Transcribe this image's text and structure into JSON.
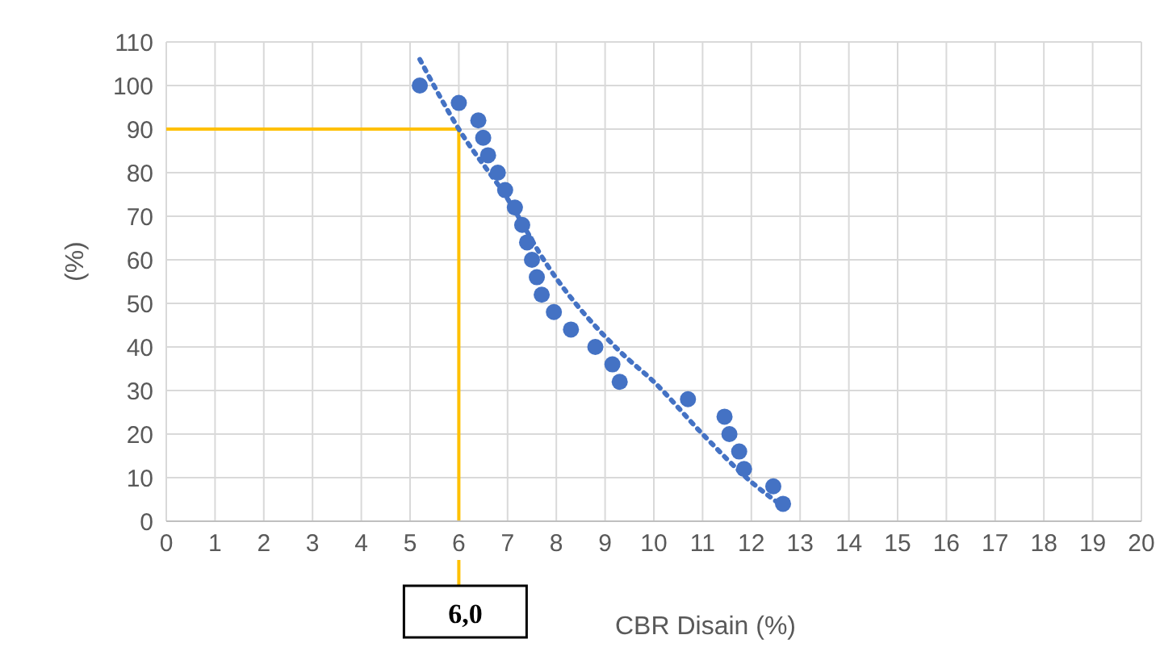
{
  "chart_data": {
    "type": "scatter",
    "xlabel": "CBR Disain (%)",
    "ylabel": "(%)",
    "series": [
      {
        "color": "#4472c4",
        "x": [
          5.2,
          6.0,
          6.4,
          6.5,
          6.6,
          6.8,
          6.95,
          7.15,
          7.3,
          7.4,
          7.5,
          7.6,
          7.7,
          7.95,
          8.3,
          8.8,
          9.15,
          9.3,
          10.7,
          11.45,
          11.55,
          11.75,
          11.85,
          12.45,
          12.65
        ],
        "values": [
          100,
          96,
          92,
          88,
          84,
          80,
          76,
          72,
          68,
          64,
          60,
          56,
          52,
          48,
          44,
          40,
          36,
          32,
          28,
          24,
          20,
          16,
          12,
          8,
          4
        ],
        "marker": "circle"
      },
      {
        "type": "line",
        "color": "#4472c4",
        "line_style": "dotted",
        "marker": "none",
        "x": [
          5.2,
          6,
          7,
          7.8,
          9.3,
          10,
          11,
          12,
          12.7
        ],
        "values": [
          106,
          90,
          74,
          59,
          39,
          32,
          20,
          9,
          3
        ]
      }
    ],
    "xlim": [
      0,
      20
    ],
    "xticks": [
      0,
      1,
      2,
      3,
      4,
      5,
      6,
      7,
      8,
      9,
      10,
      11,
      12,
      13,
      14,
      15,
      16,
      17,
      18,
      19,
      20
    ],
    "ylim": [
      0,
      110
    ],
    "yticks": [
      0,
      10,
      20,
      30,
      40,
      50,
      60,
      70,
      80,
      90,
      100,
      110
    ],
    "grid": true,
    "legend": false,
    "ref_lines": [
      {
        "axis": "y",
        "value": 90,
        "color": "#ffc000"
      },
      {
        "axis": "x",
        "value": 6,
        "label": "6,0",
        "color": "#ffc000"
      }
    ]
  }
}
